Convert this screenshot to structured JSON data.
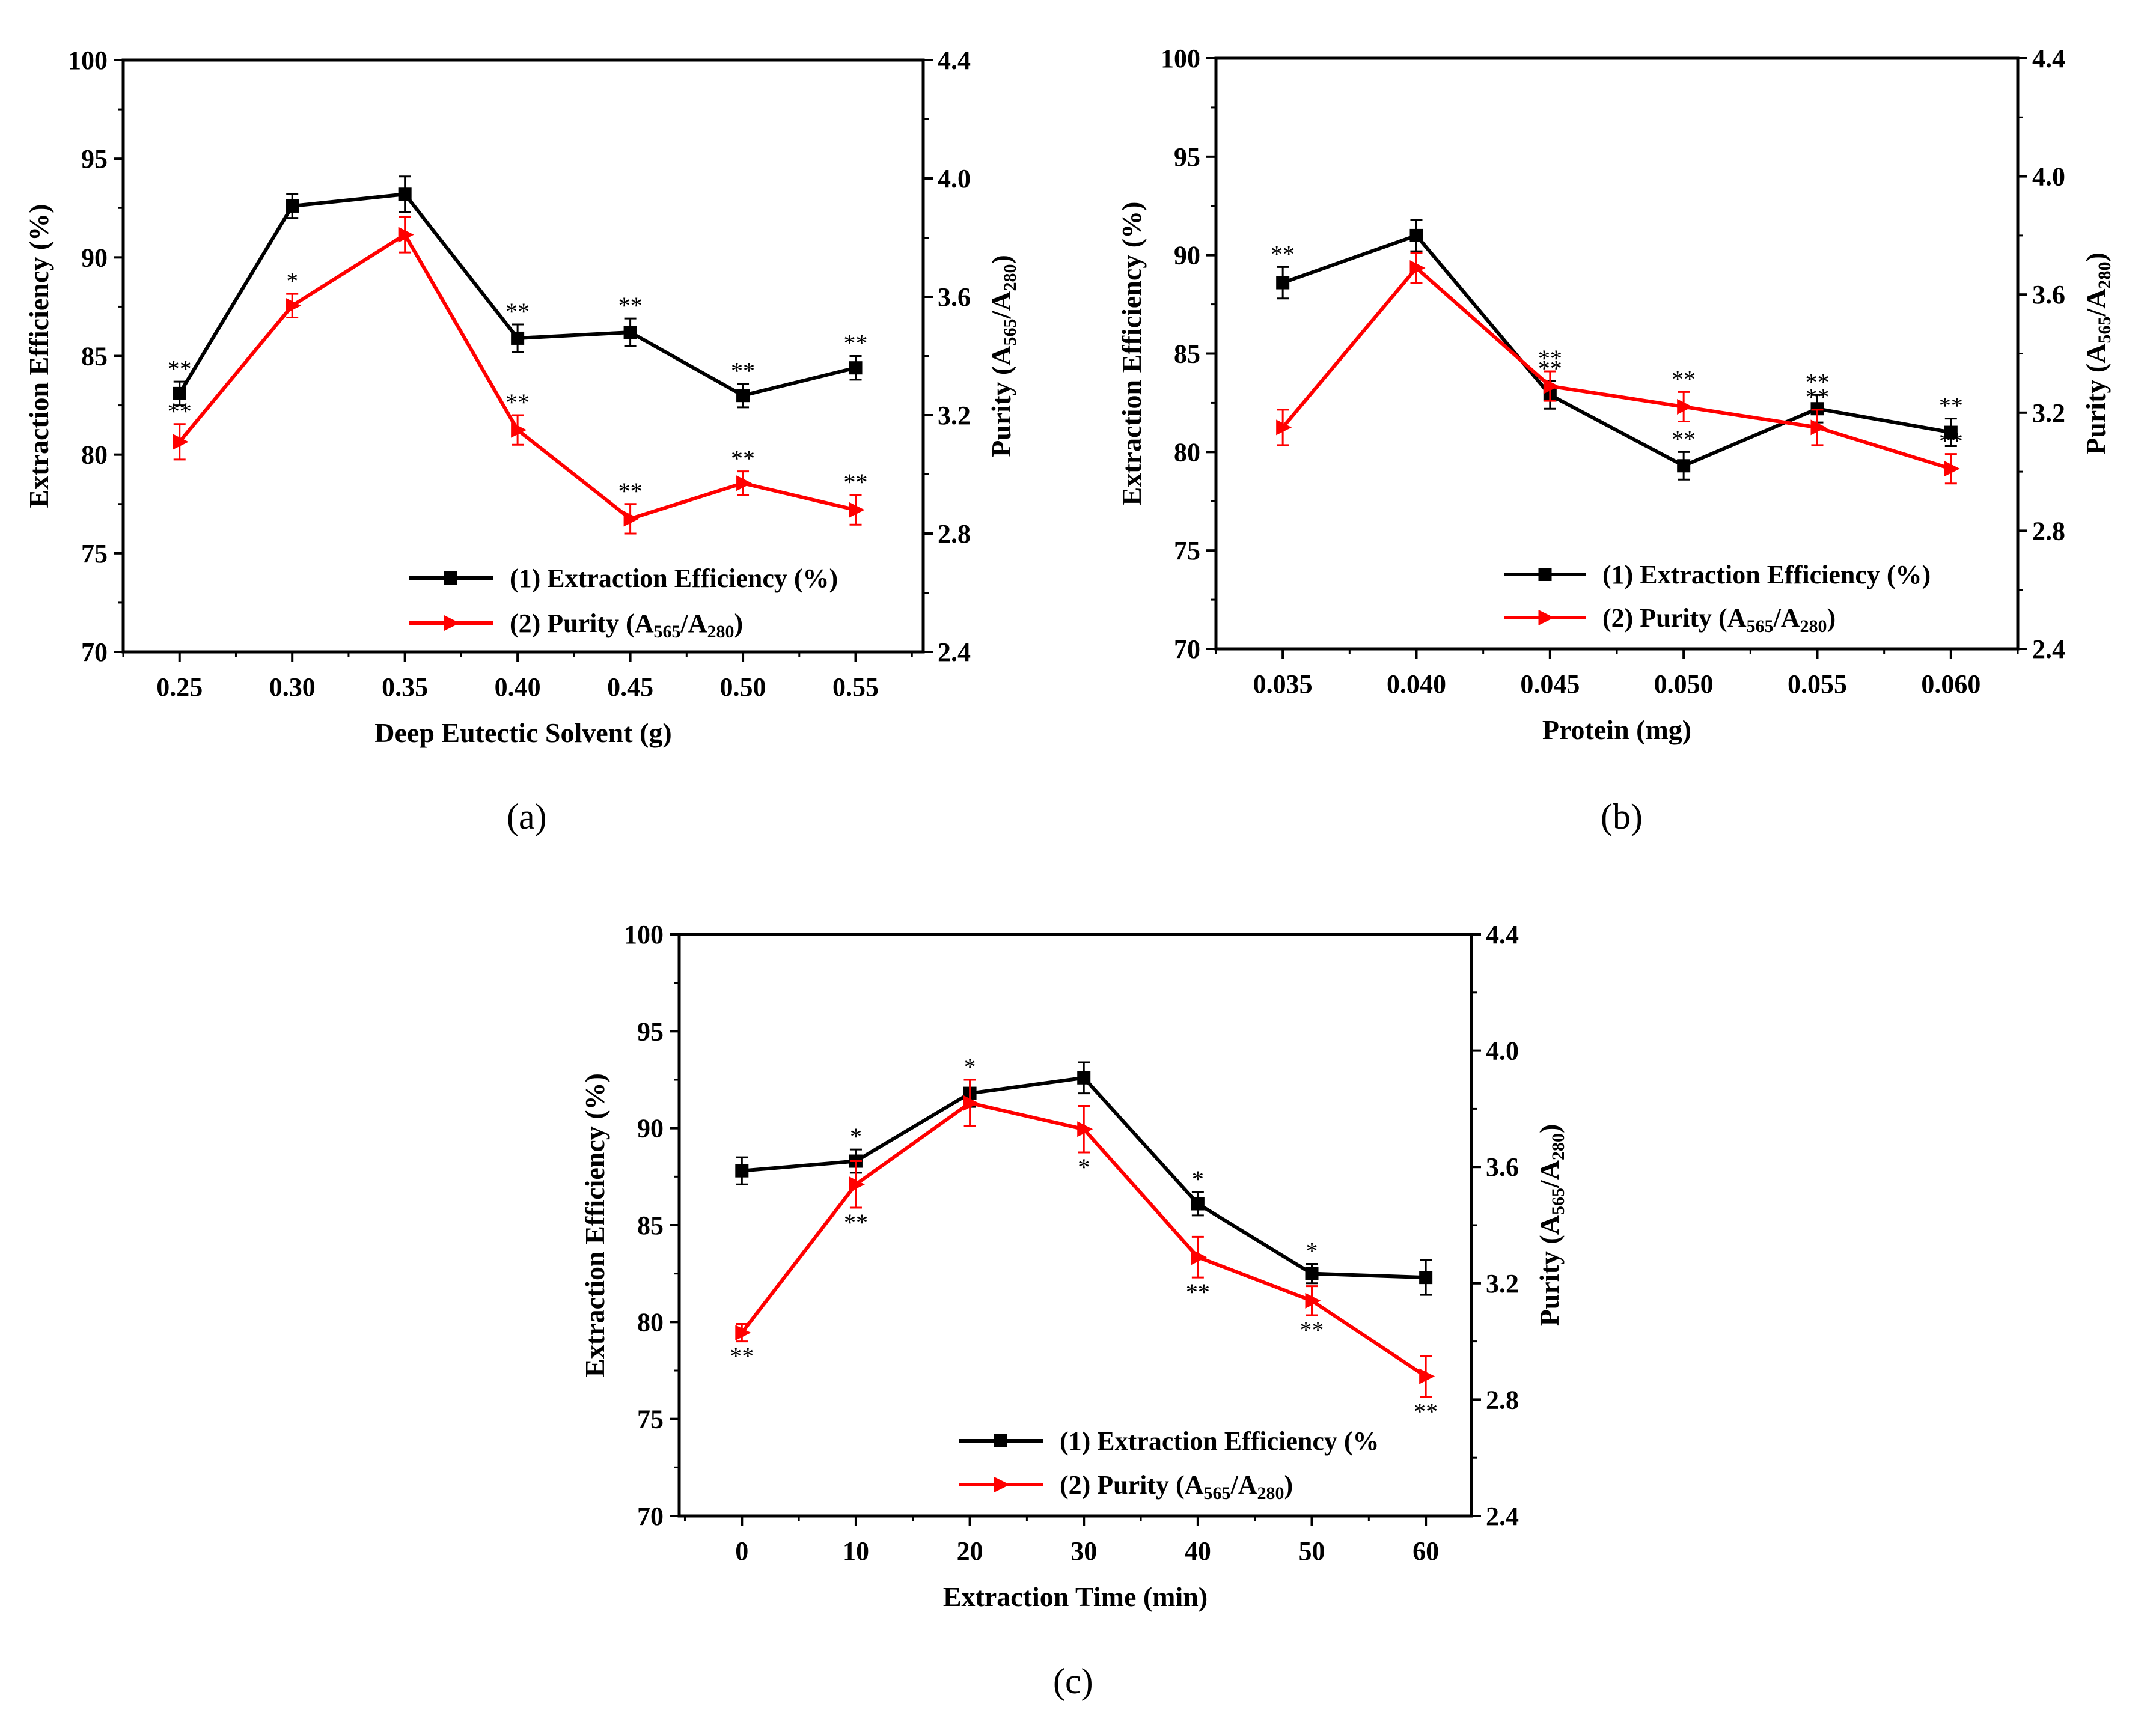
{
  "colors": {
    "efficiency": "#000000",
    "purity": "#ff0000"
  },
  "chart_data": [
    {
      "type": "line",
      "panel_label": "(a)",
      "xlabel": "Deep Eutectic Solvent (g)",
      "ylabel": "Extraction Efficiency (%)",
      "y2label": "Purity (A565/A280)",
      "x": [
        0.25,
        0.3,
        0.35,
        0.4,
        0.45,
        0.5,
        0.55
      ],
      "x_ticks": [
        "0.25",
        "0.30",
        "0.35",
        "0.40",
        "0.45",
        "0.50",
        "0.55"
      ],
      "xlim": [
        0.225,
        0.58
      ],
      "ylim": [
        70,
        100
      ],
      "y_ticks": [
        "70",
        "75",
        "80",
        "85",
        "90",
        "95",
        "100"
      ],
      "y2lim": [
        2.4,
        4.4
      ],
      "y2_ticks": [
        "2.4",
        "2.8",
        "3.2",
        "3.6",
        "4.0",
        "4.4"
      ],
      "legend": [
        "(1) Extraction Efficiency (%)",
        "(2) Purity (A",
        "565",
        "/A",
        "280",
        ")"
      ],
      "series": [
        {
          "name": "(1) Extraction Efficiency (%)",
          "axis": "left",
          "marker": "square",
          "values": [
            83.1,
            92.6,
            93.2,
            85.9,
            86.2,
            83.0,
            84.4
          ],
          "errors": [
            0.6,
            0.6,
            0.9,
            0.7,
            0.7,
            0.6,
            0.6
          ],
          "sig": [
            "**",
            "",
            "",
            "**",
            "**",
            "**",
            "**"
          ]
        },
        {
          "name": "(2) Purity (A565/A280)",
          "axis": "right",
          "marker": "triangle",
          "values": [
            3.11,
            3.57,
            3.81,
            3.15,
            2.85,
            2.97,
            2.88
          ],
          "errors": [
            0.06,
            0.04,
            0.06,
            0.05,
            0.05,
            0.04,
            0.05
          ],
          "sig": [
            "**",
            "*",
            "",
            "**",
            "**",
            "**",
            "**"
          ]
        }
      ]
    },
    {
      "type": "line",
      "panel_label": "(b)",
      "xlabel": "Protein (mg)",
      "ylabel": "Extraction Efficiency (%)",
      "y2label": "Purity (A565/A280)",
      "x": [
        0.035,
        0.04,
        0.045,
        0.05,
        0.055,
        0.06
      ],
      "x_ticks": [
        "0.035",
        "0.040",
        "0.045",
        "0.050",
        "0.055",
        "0.060"
      ],
      "xlim": [
        0.0325,
        0.0625
      ],
      "ylim": [
        70,
        100
      ],
      "y_ticks": [
        "70",
        "75",
        "80",
        "85",
        "90",
        "95",
        "100"
      ],
      "y2lim": [
        2.4,
        4.4
      ],
      "y2_ticks": [
        "2.4",
        "2.8",
        "3.2",
        "3.6",
        "4.0",
        "4.4"
      ],
      "legend": [
        "(1) Extraction Efficiency (%)",
        "(2) Purity (A",
        "565",
        "/A",
        "280",
        ")"
      ],
      "series": [
        {
          "name": "(1) Extraction Efficiency (%)",
          "axis": "left",
          "marker": "square",
          "values": [
            88.6,
            91.0,
            82.9,
            79.3,
            82.2,
            81.0
          ],
          "errors": [
            0.8,
            0.8,
            0.7,
            0.7,
            0.7,
            0.7
          ],
          "sig": [
            "**",
            "",
            "**",
            "**",
            "**",
            "**"
          ]
        },
        {
          "name": "(2) Purity (A565/A280)",
          "axis": "right",
          "marker": "triangle",
          "values": [
            3.15,
            3.69,
            3.29,
            3.22,
            3.15,
            3.01
          ],
          "errors": [
            0.06,
            0.05,
            0.05,
            0.05,
            0.06,
            0.05
          ],
          "sig": [
            "",
            "",
            "**",
            "**",
            "**",
            "**"
          ]
        }
      ]
    },
    {
      "type": "line",
      "panel_label": "(c)",
      "xlabel": "Extraction Time (min)",
      "ylabel": "Extraction Efficiency (%)",
      "y2label": "Purity (A565/A280)",
      "x": [
        0,
        10,
        20,
        30,
        40,
        50,
        60
      ],
      "x_ticks": [
        "0",
        "10",
        "20",
        "30",
        "40",
        "50",
        "60"
      ],
      "xlim": [
        -5.5,
        64
      ],
      "ylim": [
        70,
        100
      ],
      "y_ticks": [
        "70",
        "75",
        "80",
        "85",
        "90",
        "95",
        "100"
      ],
      "y2lim": [
        2.4,
        4.4
      ],
      "y2_ticks": [
        "2.4",
        "2.8",
        "3.2",
        "3.6",
        "4.0",
        "4.4"
      ],
      "legend": [
        "(1) Extraction Efficiency (%",
        "(2) Purity (A",
        "565",
        "/A",
        "280",
        ")"
      ],
      "series": [
        {
          "name": "(1) Extraction Efficiency (%)",
          "axis": "left",
          "marker": "square",
          "values": [
            87.8,
            88.3,
            91.8,
            92.6,
            86.1,
            82.5,
            82.3
          ],
          "errors": [
            0.7,
            0.6,
            0.7,
            0.8,
            0.6,
            0.5,
            0.9
          ],
          "sig": [
            "",
            "*",
            "*",
            "",
            "*",
            "*",
            ""
          ]
        },
        {
          "name": "(2) Purity (A565/A280)",
          "axis": "right",
          "marker": "triangle",
          "values": [
            3.03,
            3.54,
            3.82,
            3.73,
            3.29,
            3.14,
            2.88
          ],
          "errors": [
            0.03,
            0.08,
            0.08,
            0.08,
            0.07,
            0.05,
            0.07
          ],
          "sig": [
            "**",
            "**",
            "",
            "*",
            "**",
            "**",
            "**"
          ]
        }
      ]
    }
  ]
}
